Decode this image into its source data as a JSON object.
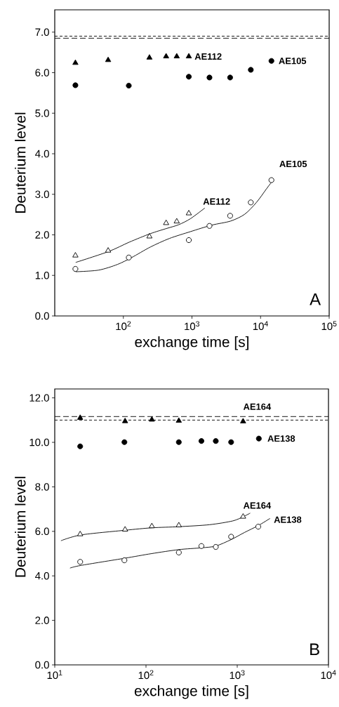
{
  "chart_data": [
    {
      "type": "scatter",
      "xlabel": "exchange time [s]",
      "ylabel": "Deuterium level",
      "log": "x",
      "xlim": [
        10,
        100000
      ],
      "xticks": [
        {
          "value": 100,
          "label": "10$^{2}$"
        },
        {
          "value": 1000,
          "label": "10$^{3}$"
        },
        {
          "value": 10000,
          "label": "10$^{4}$"
        },
        {
          "value": 100000,
          "label": "10$^{5}$"
        }
      ],
      "ylim": [
        0,
        7.55
      ],
      "yticks": [
        {
          "value": 0,
          "label": "0.0"
        },
        {
          "value": 1,
          "label": "1.0"
        },
        {
          "value": 2,
          "label": "2.0"
        },
        {
          "value": 3,
          "label": "3.0"
        },
        {
          "value": 4,
          "label": "4.0"
        },
        {
          "value": 5,
          "label": "5.0"
        },
        {
          "value": 6,
          "label": "6.0"
        },
        {
          "value": 7,
          "label": "7.0"
        }
      ],
      "grid": false,
      "series": [
        {
          "type": "line",
          "color": "#000000",
          "marker": "none",
          "line_style": "solid",
          "x": [
            20.2,
            61.2,
            122,
            248,
            432,
            641,
            953,
            1535
          ],
          "values": [
            1.32,
            1.59,
            1.82,
            2.03,
            2.16,
            2.25,
            2.4,
            2.66
          ]
        },
        {
          "type": "line",
          "color": "#000000",
          "marker": "none",
          "line_style": "solid",
          "x": [
            20.2,
            43.6,
            82,
            132,
            248,
            468,
            953,
            1945,
            3664,
            5890,
            8710,
            12020,
            15200
          ],
          "values": [
            1.09,
            1.13,
            1.27,
            1.44,
            1.7,
            1.91,
            2.08,
            2.24,
            2.34,
            2.51,
            2.8,
            3.12,
            3.35
          ]
        },
        {
          "name": "AE112",
          "color": "#000000",
          "marker": "triangle",
          "x": [
            20,
            60,
            240,
            420,
            600,
            900
          ],
          "values": [
            6.24,
            6.31,
            6.37,
            6.4,
            6.4,
            6.4
          ]
        },
        {
          "name": "AE105",
          "color": "#000000",
          "marker": "circle",
          "x": [
            20,
            120,
            900,
            1800,
            3600,
            7200,
            14400
          ],
          "values": [
            5.69,
            5.68,
            5.9,
            5.88,
            5.88,
            6.07,
            6.29
          ]
        },
        {
          "name": "AE105",
          "color": "#ffffff",
          "marker": "circle",
          "x": [
            20,
            120,
            900,
            1800,
            3600,
            7200,
            14400
          ],
          "values": [
            1.16,
            1.44,
            1.87,
            2.22,
            2.47,
            2.8,
            3.35
          ]
        },
        {
          "name": "AE112",
          "color": "#ffffff",
          "marker": "triangle",
          "x": [
            20,
            60,
            240,
            420,
            600,
            900
          ],
          "values": [
            1.49,
            1.61,
            1.96,
            2.29,
            2.33,
            2.53
          ]
        }
      ],
      "ref_lines": [
        {
          "axis": "y",
          "value": 6.9,
          "color": "#000000",
          "line_style": "dotted"
        },
        {
          "axis": "y",
          "value": 6.85,
          "color": "#000000",
          "line_style": "dashed"
        }
      ],
      "annotations": [
        "A"
      ]
    },
    {
      "type": "scatter",
      "xlabel": "exchange time [s]",
      "ylabel": "Deuterium level",
      "log": "x",
      "xlim": [
        10,
        10000
      ],
      "xticks": [
        {
          "value": 10,
          "label": "10$^{1}$"
        },
        {
          "value": 100,
          "label": "10$^{2}$"
        },
        {
          "value": 1000,
          "label": "10$^{3}$"
        },
        {
          "value": 10000,
          "label": "10$^{4}$"
        }
      ],
      "ylim": [
        0,
        12.4
      ],
      "yticks": [
        {
          "value": 0,
          "label": "0.0"
        },
        {
          "value": 2,
          "label": "2.0"
        },
        {
          "value": 4,
          "label": "4.0"
        },
        {
          "value": 6,
          "label": "6.0"
        },
        {
          "value": 8,
          "label": "8.0"
        },
        {
          "value": 10,
          "label": "10.0"
        },
        {
          "value": 12,
          "label": "12.0"
        }
      ],
      "grid": false,
      "series": [
        {
          "type": "line",
          "color": "#000000",
          "marker": "none",
          "line_style": "solid",
          "x": [
            11.7,
            19.4,
            59,
            116,
            229,
            498,
            894,
            1164,
            1387
          ],
          "values": [
            5.58,
            5.84,
            6.05,
            6.16,
            6.21,
            6.3,
            6.47,
            6.66,
            6.82
          ]
        },
        {
          "type": "line",
          "color": "#000000",
          "marker": "none",
          "line_style": "solid",
          "x": [
            14.7,
            19.4,
            58,
            115,
            229,
            405,
            582,
            857,
            1200,
            1700,
            2286
          ],
          "values": [
            4.35,
            4.47,
            4.79,
            5.0,
            5.18,
            5.26,
            5.34,
            5.63,
            5.95,
            6.26,
            6.58
          ]
        },
        {
          "name": "AE164",
          "color": "#000000",
          "marker": "triangle",
          "x": [
            19,
            59,
            116,
            229,
            1160
          ],
          "values": [
            11.1,
            10.95,
            11.02,
            10.97,
            10.94
          ]
        },
        {
          "name": "AE138",
          "color": "#000000",
          "marker": "circle",
          "x": [
            19,
            58,
            229,
            405,
            582,
            857,
            1726
          ],
          "values": [
            9.82,
            10.01,
            10.01,
            10.06,
            10.06,
            10.01,
            10.17
          ]
        },
        {
          "name": "AE164",
          "color": "#ffffff",
          "marker": "triangle",
          "x": [
            19,
            59,
            116,
            229,
            1160
          ],
          "values": [
            5.87,
            6.08,
            6.23,
            6.27,
            6.66
          ]
        },
        {
          "name": "AE138",
          "color": "#ffffff",
          "marker": "circle",
          "x": [
            19,
            58,
            229,
            405,
            582,
            857,
            1700
          ],
          "values": [
            4.63,
            4.7,
            5.05,
            5.34,
            5.3,
            5.76,
            6.21
          ]
        }
      ],
      "ref_lines": [
        {
          "axis": "y",
          "value": 11.16,
          "color": "#000000",
          "line_style": "dashed"
        },
        {
          "axis": "y",
          "value": 11.0,
          "color": "#000000",
          "line_style": "dotted"
        }
      ],
      "annotations": [
        "B"
      ]
    }
  ]
}
